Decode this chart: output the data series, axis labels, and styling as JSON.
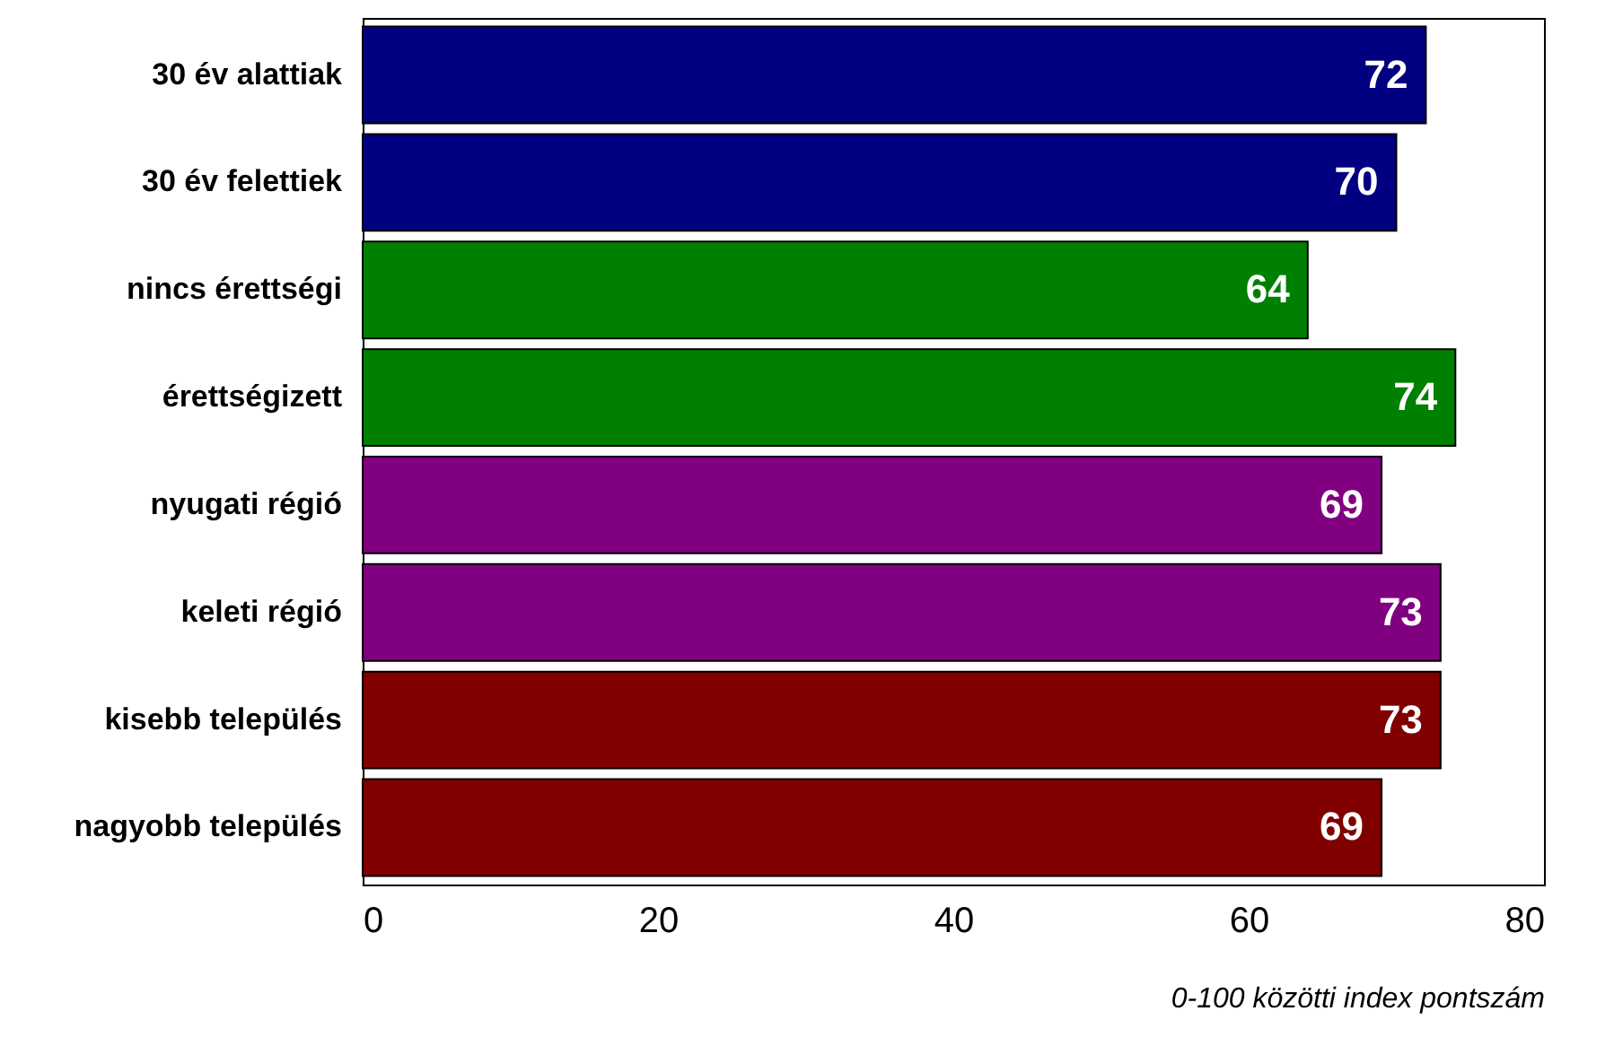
{
  "chart_data": {
    "type": "bar",
    "orientation": "horizontal",
    "categories": [
      "30 év alattiak",
      "30 év felettiek",
      "nincs érettségi",
      "érettségizett",
      "nyugati régió",
      "keleti régió",
      "kisebb település",
      "nagyobb település"
    ],
    "values": [
      72,
      70,
      64,
      74,
      69,
      73,
      73,
      69
    ],
    "colors": [
      "#000080",
      "#000080",
      "#008000",
      "#008000",
      "#800080",
      "#800080",
      "#800000",
      "#800000"
    ],
    "xlim": [
      0,
      80
    ],
    "xticks": [
      0,
      20,
      40,
      60,
      80
    ],
    "xlabel": "0-100 közötti index pontszám",
    "data_labels": true,
    "grid": false
  }
}
